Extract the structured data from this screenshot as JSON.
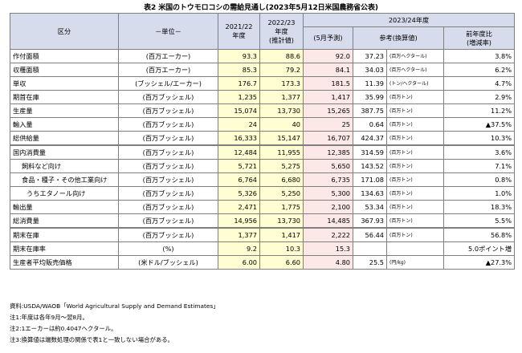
{
  "title": "表2 米国のトウモロコシの需給見通し(2023年5月12日米国農務省公表)",
  "header": {
    "item": "区分",
    "unit": "－単位－",
    "y2122": "2021/22\n年度",
    "y2223": "2022/23\n年度\n(推計値)",
    "y2324": "2023/24年度",
    "forecast": "(5月予測)",
    "reference": "参考(換算値)",
    "change": "前年度比\n(増減率)"
  },
  "rows": [
    {
      "item": "作付面積",
      "indent": 0,
      "unit": "(百万エーカー)",
      "y2122": "93.3",
      "y2223": "88.6",
      "forecast": "92.0",
      "ref": "37.23",
      "ref_unit": "(百万ヘクタール)",
      "change": "3.8%"
    },
    {
      "item": "収穫面積",
      "indent": 0,
      "unit": "(百万エーカー)",
      "y2122": "85.3",
      "y2223": "79.2",
      "forecast": "84.1",
      "ref": "34.03",
      "ref_unit": "(百万ヘクタール)",
      "change": "6.2%"
    },
    {
      "item": "単収",
      "indent": 0,
      "unit": "(ブッシェル/エーカー)",
      "y2122": "176.7",
      "y2223": "173.3",
      "forecast": "181.5",
      "ref": "11.39",
      "ref_unit": "(トン/ヘクタール)",
      "change": "4.7%"
    },
    {
      "item": "期首在庫",
      "indent": 0,
      "unit": "(百万ブッシェル)",
      "y2122": "1,235",
      "y2223": "1,377",
      "forecast": "1,417",
      "ref": "35.99",
      "ref_unit": "(百万トン)",
      "change": "2.9%"
    },
    {
      "item": "生産量",
      "indent": 0,
      "unit": "(百万ブッシェル)",
      "y2122": "15,074",
      "y2223": "13,730",
      "forecast": "15,265",
      "ref": "387.75",
      "ref_unit": "(百万トン)",
      "change": "11.2%"
    },
    {
      "item": "輸入量",
      "indent": 0,
      "unit": "(百万ブッシェル)",
      "y2122": "24",
      "y2223": "40",
      "forecast": "25",
      "ref": "0.64",
      "ref_unit": "(百万トン)",
      "change": "▲37.5%"
    },
    {
      "item": "総供給量",
      "indent": 0,
      "unit": "(百万ブッシェル)",
      "y2122": "16,333",
      "y2223": "15,147",
      "forecast": "16,707",
      "ref": "424.37",
      "ref_unit": "(百万トン)",
      "change": "10.3%"
    },
    {
      "item": "国内消費量",
      "indent": 0,
      "gap": true,
      "unit": "(百万ブッシェル)",
      "y2122": "12,484",
      "y2223": "11,955",
      "forecast": "12,385",
      "ref": "314.59",
      "ref_unit": "(百万トン)",
      "change": "3.6%"
    },
    {
      "item": "飼料など向け",
      "indent": 1,
      "unit": "(百万ブッシェル)",
      "y2122": "5,721",
      "y2223": "5,275",
      "forecast": "5,650",
      "ref": "143.52",
      "ref_unit": "(百万トン)",
      "change": "7.1%"
    },
    {
      "item": "食品・種子・その他工業向け",
      "indent": 1,
      "unit": "(百万ブッシェル)",
      "y2122": "6,764",
      "y2223": "6,680",
      "forecast": "6,735",
      "ref": "171.08",
      "ref_unit": "(百万トン)",
      "change": "0.8%"
    },
    {
      "item": "うちエタノール向け",
      "indent": 2,
      "unit": "(百万ブッシェル)",
      "y2122": "5,326",
      "y2223": "5,250",
      "forecast": "5,300",
      "ref": "134.63",
      "ref_unit": "(百万トン)",
      "change": "1.0%"
    },
    {
      "item": "輸出量",
      "indent": 0,
      "unit": "(百万ブッシェル)",
      "y2122": "2,471",
      "y2223": "1,775",
      "forecast": "2,100",
      "ref": "53.34",
      "ref_unit": "(百万トン)",
      "change": "18.3%"
    },
    {
      "item": "総消費量",
      "indent": 0,
      "unit": "(百万ブッシェル)",
      "y2122": "14,956",
      "y2223": "13,730",
      "forecast": "14,485",
      "ref": "367.93",
      "ref_unit": "(百万トン)",
      "change": "5.5%"
    },
    {
      "item": "期末在庫",
      "indent": 0,
      "gap": true,
      "unit": "(百万ブッシェル)",
      "y2122": "1,377",
      "y2223": "1,417",
      "forecast": "2,222",
      "ref": "56.44",
      "ref_unit": "(百万トン)",
      "change": "56.8%"
    },
    {
      "item": "期末在庫率",
      "indent": 0,
      "unit": "(%)",
      "y2122": "9.2",
      "y2223": "10.3",
      "forecast": "15.3",
      "ref": "",
      "ref_unit": "",
      "change": "5.0ポイント増"
    },
    {
      "item": "生産者平均販売価格",
      "indent": 0,
      "unit": "(米ドル/ブッシェル)",
      "y2122": "6.00",
      "y2223": "6.60",
      "forecast": "4.80",
      "ref": "25.5",
      "ref_unit": "(円/kg)",
      "change": "▲27.3%"
    }
  ],
  "notes": [
    "資料:USDA/WAOB「World Agricultural Supply and Demand Estimates」",
    "注1:年度は各年9月～翌8月。",
    "注2:1エーカーは約0.4047ヘクタール。",
    "注3:換算値は端数処理の関係で表1と一致しない場合がある。"
  ]
}
